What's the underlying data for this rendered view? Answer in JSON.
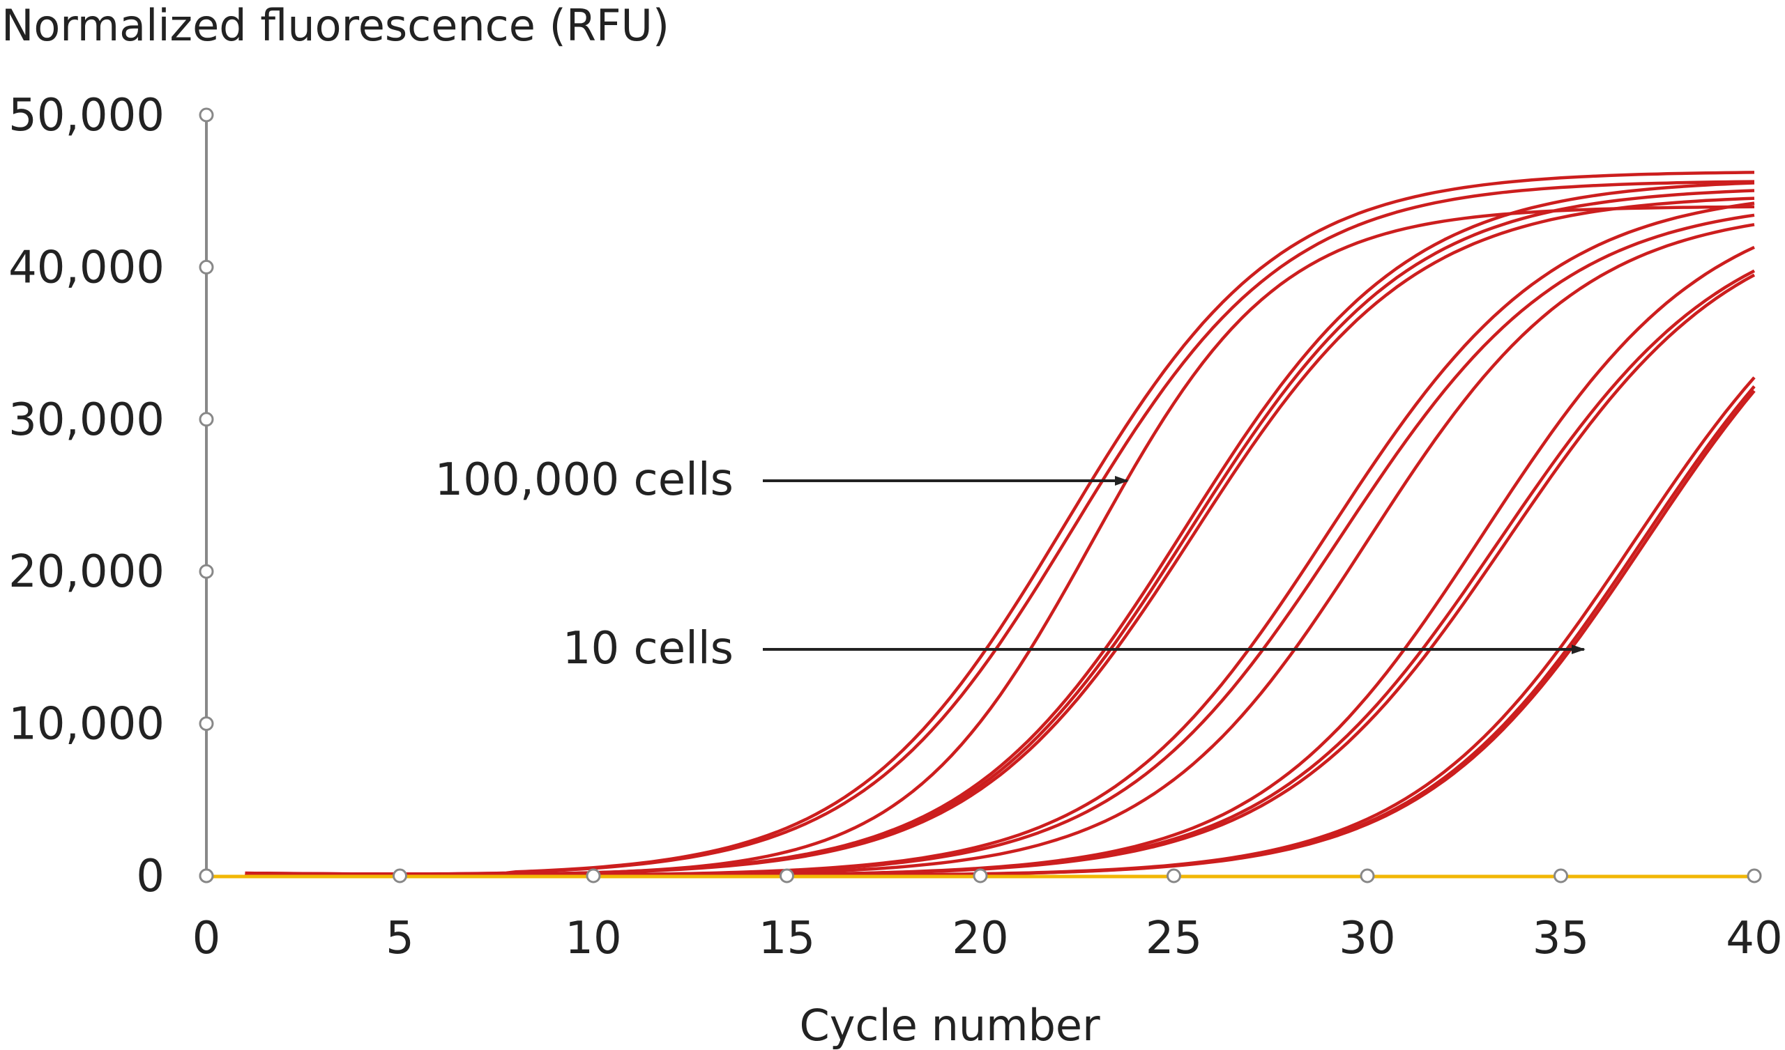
{
  "chart_data": {
    "type": "line",
    "ylabel": "Normalized fluorescence (RFU)",
    "xlabel": "Cycle number",
    "xlim": [
      0,
      40
    ],
    "ylim": [
      0,
      50000
    ],
    "x_ticks": [
      "0",
      "5",
      "10",
      "15",
      "20",
      "25",
      "30",
      "35",
      "40"
    ],
    "y_ticks": [
      "0",
      "10,000",
      "20,000",
      "30,000",
      "40,000",
      "50,000"
    ],
    "grid": false,
    "annotations": [
      {
        "text": "100,000 cells",
        "arrow_to": {
          "x": 23.8,
          "y": 26000
        }
      },
      {
        "text": "10 cells",
        "arrow_to": {
          "x": 35.6,
          "y": 14800
        }
      }
    ],
    "colors": {
      "amplification": "#cc1e1e",
      "baseline": "#f2b705",
      "axis": "#888888",
      "text": "#222222"
    },
    "series": [
      {
        "group": 1,
        "ct": 22.2,
        "plateau": 46300,
        "slope": 2.75,
        "values": [
          [
            1,
            200
          ],
          [
            40,
            46300
          ]
        ]
      },
      {
        "group": 1,
        "ct": 22.4,
        "plateau": 45700,
        "slope": 2.75
      },
      {
        "group": 1,
        "ct": 22.9,
        "plateau": 44000,
        "slope": 2.4
      },
      {
        "group": 2,
        "ct": 25.3,
        "plateau": 45800,
        "slope": 2.85
      },
      {
        "group": 2,
        "ct": 25.4,
        "plateau": 45300,
        "slope": 2.85
      },
      {
        "group": 2,
        "ct": 25.5,
        "plateau": 44800,
        "slope": 2.85
      },
      {
        "group": 3,
        "ct": 29.0,
        "plateau": 45200,
        "slope": 2.9
      },
      {
        "group": 3,
        "ct": 29.3,
        "plateau": 44500,
        "slope": 2.9
      },
      {
        "group": 3,
        "ct": 30.0,
        "plateau": 44000,
        "slope": 2.8
      },
      {
        "group": 4,
        "ct": 33.0,
        "plateau": 45000,
        "slope": 2.9
      },
      {
        "group": 4,
        "ct": 33.4,
        "plateau": 44000,
        "slope": 2.95
      },
      {
        "group": 4,
        "ct": 33.6,
        "plateau": 44000,
        "slope": 2.95
      },
      {
        "group": 5,
        "ct": 36.9,
        "plateau": 44000,
        "slope": 2.9
      },
      {
        "group": 5,
        "ct": 37.1,
        "plateau": 44000,
        "slope": 2.9
      },
      {
        "group": 5,
        "ct": 37.2,
        "plateau": 44000,
        "slope": 2.9
      },
      {
        "group": 0,
        "name": "",
        "baseline": true,
        "values": [
          [
            0,
            0
          ],
          [
            40,
            0
          ]
        ]
      }
    ]
  }
}
